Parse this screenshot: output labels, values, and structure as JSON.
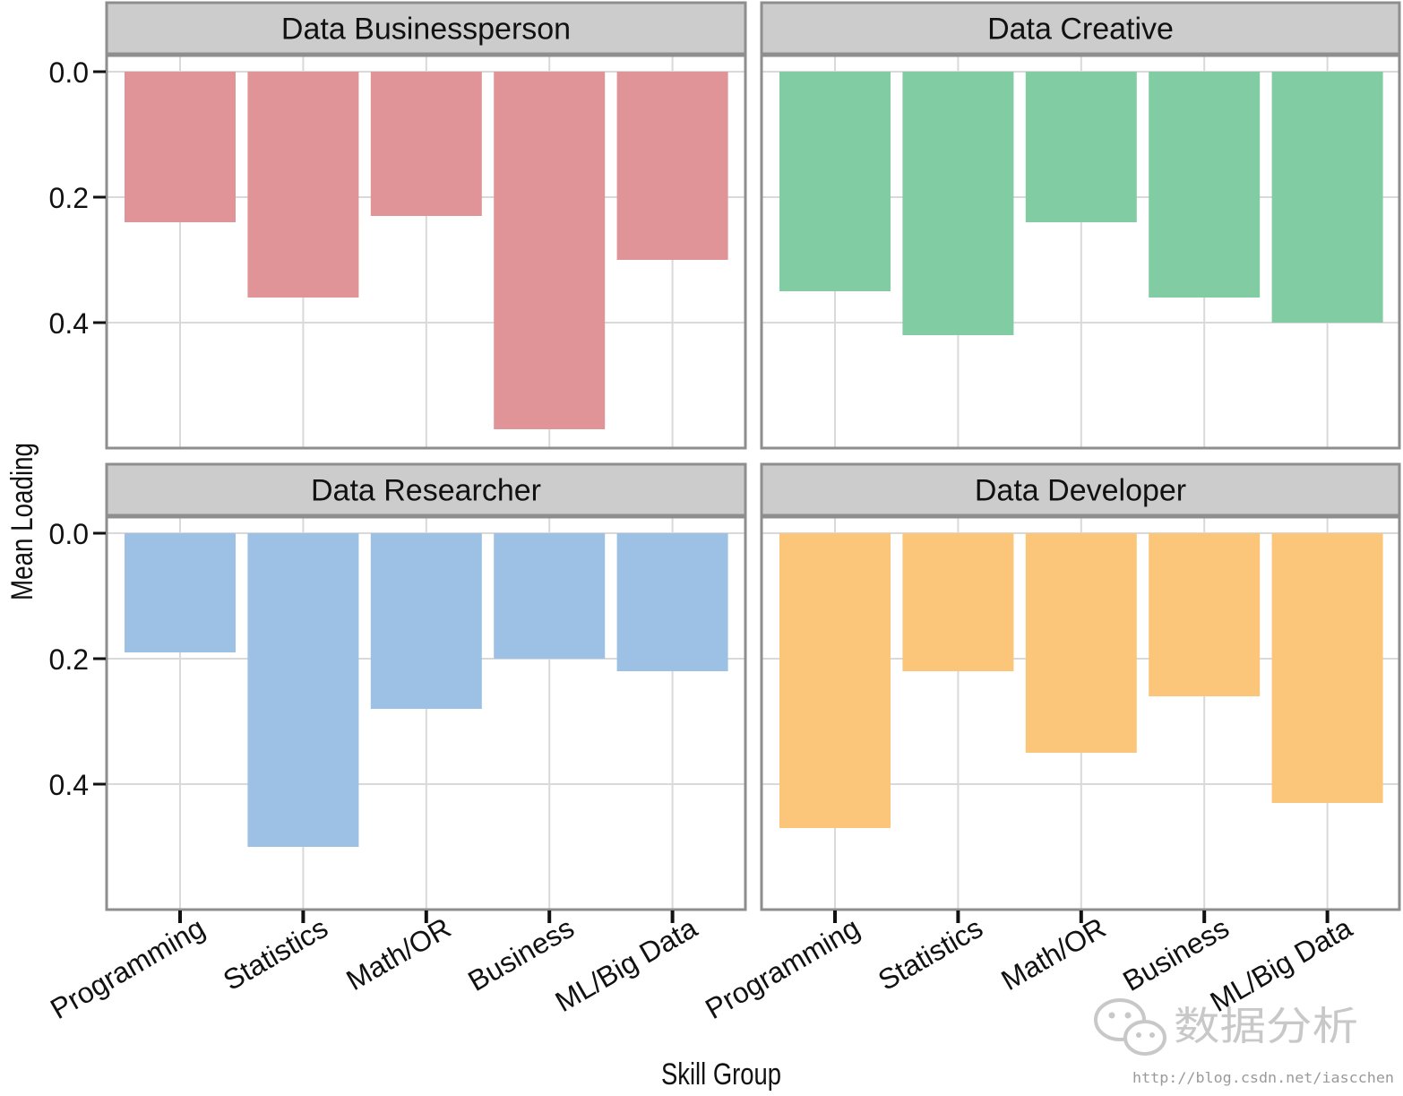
{
  "chart_data": {
    "type": "bar",
    "facet_layout": "2x2 grid",
    "xlabel": "Skill Group",
    "ylabel": "Mean Loading",
    "y_axis_reversed": true,
    "ylim": [
      0,
      0.6
    ],
    "yticks": [
      0.0,
      0.2,
      0.4
    ],
    "ytick_labels": [
      "0.0",
      "0.2",
      "0.4"
    ],
    "categories": [
      "Programming",
      "Statistics",
      "Math/OR",
      "Business",
      "ML/Big Data"
    ],
    "grid": true,
    "legend": "none",
    "panels": [
      {
        "title": "Data Businessperson",
        "color": "#e09497",
        "values": [
          0.24,
          0.36,
          0.23,
          0.57,
          0.3
        ]
      },
      {
        "title": "Data Creative",
        "color": "#82cca3",
        "values": [
          0.35,
          0.42,
          0.24,
          0.36,
          0.4
        ]
      },
      {
        "title": "Data Researcher",
        "color": "#9dc1e4",
        "values": [
          0.19,
          0.5,
          0.28,
          0.2,
          0.22
        ]
      },
      {
        "title": "Data Developer",
        "color": "#fbc67a",
        "values": [
          0.47,
          0.22,
          0.35,
          0.26,
          0.43
        ]
      }
    ]
  },
  "watermark": {
    "text": "数据分析",
    "url": "http://blog.csdn.net/iascchen"
  }
}
